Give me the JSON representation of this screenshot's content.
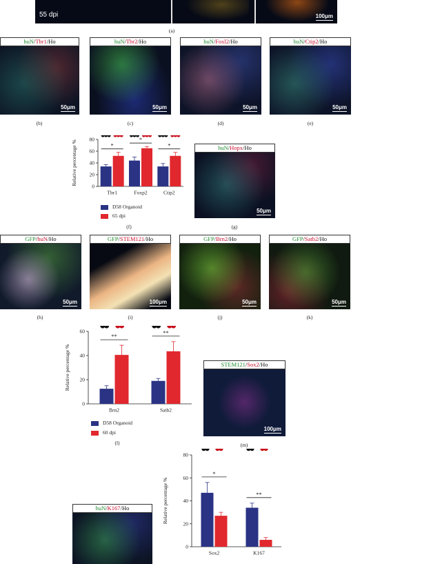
{
  "colors": {
    "organoid": "#2b3385",
    "dpi": "#e0282e",
    "green": "#1f8a2e",
    "red": "#c8102e"
  },
  "panel_a": {
    "label_55": "55 dpi",
    "scale": "100μm",
    "caption": "(a)"
  },
  "panels": {
    "b": {
      "g": "huN",
      "r": "Tbr1",
      "k": "Ho",
      "scale": "50μm",
      "caption": "(b)"
    },
    "c": {
      "g": "huN",
      "r": "Tbr2",
      "k": "Ho",
      "scale": "50μm",
      "caption": "(c)"
    },
    "d": {
      "g": "huN",
      "r": "Foxl2",
      "k": "Ho",
      "scale": "50μm",
      "caption": "(d)"
    },
    "e": {
      "g": "huN",
      "r": "Ctip2",
      "k": "Ho",
      "scale": "50μm",
      "caption": "(e)"
    },
    "g": {
      "g": "huN",
      "r": "Hopx",
      "k": "Ho",
      "scale": "50μm",
      "caption": "(g)"
    },
    "h": {
      "g": "GFP",
      "r": "huN",
      "k": "Ho",
      "scale": "50μm",
      "caption": "(h)"
    },
    "i": {
      "g": "GFP",
      "r": "STEM121",
      "k": "Ho",
      "scale": "100μm",
      "caption": "(i)"
    },
    "j": {
      "g": "GFP",
      "r": "Brn2",
      "k": "Ho",
      "scale": "50μm",
      "caption": "(j)"
    },
    "k": {
      "g": "GFP",
      "r": "Satb2",
      "k": "Ho",
      "scale": "50μm",
      "caption": "(k)"
    },
    "m": {
      "g": "STEM121",
      "r": "Sox2",
      "k": "Ho",
      "scale": "100μm",
      "caption": "(m)"
    },
    "n": {
      "g": "huN",
      "r": "K167",
      "k": "Ho"
    }
  },
  "slash": "/",
  "chart_data": [
    {
      "type": "bar",
      "panel": "f",
      "categories": [
        "Tbr1",
        "Foxp2",
        "Ctip2"
      ],
      "series": [
        {
          "name": "D58 Organoid",
          "values": [
            34,
            44,
            34
          ],
          "errors": [
            3,
            6,
            5
          ],
          "points": [
            [
              33,
              36,
              32
            ],
            [
              40,
              47,
              45
            ],
            [
              31,
              37,
              34
            ]
          ]
        },
        {
          "name": "65 dpi",
          "values": [
            52,
            65,
            52
          ],
          "errors": [
            6,
            3,
            6
          ],
          "points": [
            [
              47,
              55,
              53
            ],
            [
              62,
              68,
              64
            ],
            [
              47,
              58,
              50
            ]
          ]
        }
      ],
      "ylabel": "Relative percentage %",
      "ylim": [
        0,
        80
      ],
      "yticks": [
        0,
        20,
        40,
        60,
        80
      ],
      "significance": [
        "*",
        "*",
        "*"
      ],
      "caption": "(f)"
    },
    {
      "type": "bar",
      "panel": "l",
      "categories": [
        "Brn2",
        "Satb2"
      ],
      "series": [
        {
          "name": "D58 Organoid",
          "values": [
            12.5,
            19
          ],
          "errors": [
            2.5,
            2
          ],
          "points": [
            [
              15,
              11,
              12
            ],
            [
              21,
              19,
              17
            ]
          ]
        },
        {
          "name": "60 dpi",
          "values": [
            40.5,
            43.5
          ],
          "errors": [
            8,
            8
          ],
          "points": [
            [
              49,
              35,
              40
            ],
            [
              50,
              43,
              32
            ]
          ]
        }
      ],
      "ylabel": "Relative percentage %",
      "ylim": [
        0,
        60
      ],
      "yticks": [
        0,
        20,
        40,
        60
      ],
      "significance": [
        "**",
        "**"
      ],
      "caption": "(l)"
    },
    {
      "type": "bar",
      "panel": "o",
      "categories": [
        "Sox2",
        "K167"
      ],
      "series": [
        {
          "name": "",
          "values": [
            47,
            34
          ],
          "errors": [
            9,
            4
          ],
          "points": [
            [
              57,
              45,
              40
            ],
            [
              38,
              35,
              30
            ]
          ]
        },
        {
          "name": "",
          "values": [
            27,
            6
          ],
          "errors": [
            3,
            2
          ],
          "points": [
            [
              29,
              28,
              26
            ],
            [
              8,
              6,
              4
            ]
          ]
        }
      ],
      "ylabel": "Relative percentage %",
      "ylim": [
        0,
        80
      ],
      "yticks": [
        0,
        20,
        40,
        60,
        80
      ],
      "significance": [
        "*",
        "**"
      ]
    }
  ]
}
